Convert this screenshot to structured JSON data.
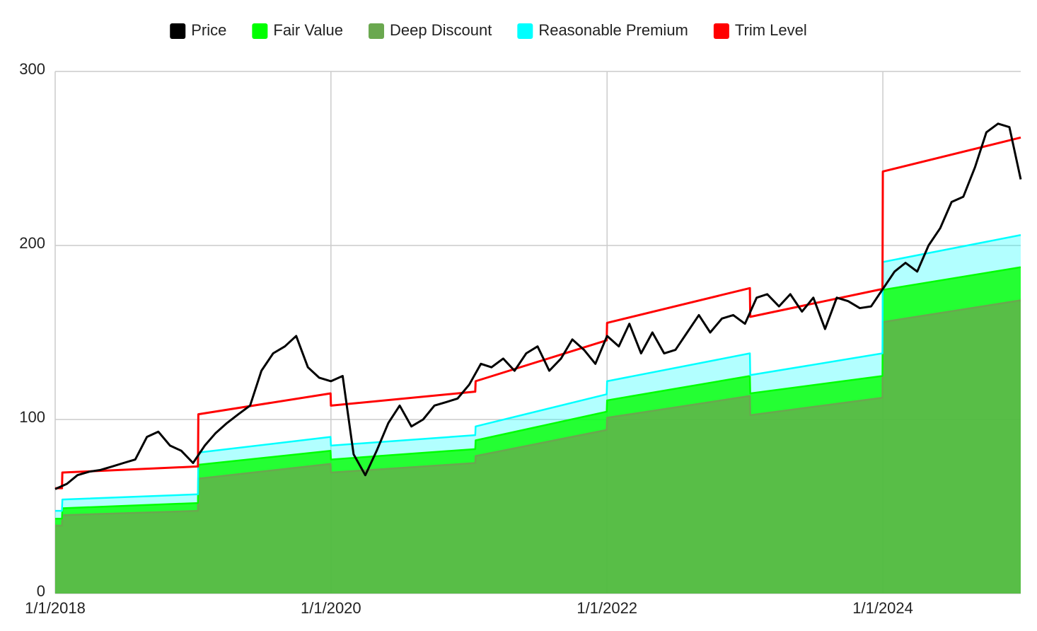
{
  "chart_data": {
    "type": "line",
    "xlim": [
      "2018-01-01",
      "2024-12-31"
    ],
    "xticks": [
      {
        "value": "2018-01-01",
        "label": "1/1/2018"
      },
      {
        "value": "2020-01-01",
        "label": "1/1/2020"
      },
      {
        "value": "2022-01-01",
        "label": "1/1/2022"
      },
      {
        "value": "2024-01-01",
        "label": "1/1/2024"
      }
    ],
    "ylim": [
      0,
      300
    ],
    "yticks": [
      0,
      100,
      200,
      300
    ],
    "grid": true,
    "legend": "top",
    "series": [
      {
        "name": "Price",
        "color": "#000000",
        "area": false,
        "x": [
          "2018-01-01",
          "2018-02-01",
          "2018-03-01",
          "2018-04-01",
          "2018-05-01",
          "2018-06-01",
          "2018-07-01",
          "2018-08-01",
          "2018-09-01",
          "2018-10-01",
          "2018-11-01",
          "2018-12-01",
          "2019-01-01",
          "2019-02-01",
          "2019-03-01",
          "2019-04-01",
          "2019-05-01",
          "2019-06-01",
          "2019-07-01",
          "2019-08-01",
          "2019-09-01",
          "2019-10-01",
          "2019-11-01",
          "2019-12-01",
          "2020-01-01",
          "2020-02-01",
          "2020-03-01",
          "2020-04-01",
          "2020-05-01",
          "2020-06-01",
          "2020-07-01",
          "2020-08-01",
          "2020-09-01",
          "2020-10-01",
          "2020-11-01",
          "2020-12-01",
          "2021-01-01",
          "2021-02-01",
          "2021-03-01",
          "2021-04-01",
          "2021-05-01",
          "2021-06-01",
          "2021-07-01",
          "2021-08-01",
          "2021-09-01",
          "2021-10-01",
          "2021-11-01",
          "2021-12-01",
          "2022-01-01",
          "2022-02-01",
          "2022-03-01",
          "2022-04-01",
          "2022-05-01",
          "2022-06-01",
          "2022-07-01",
          "2022-08-01",
          "2022-09-01",
          "2022-10-01",
          "2022-11-01",
          "2022-12-01",
          "2023-01-01",
          "2023-02-01",
          "2023-03-01",
          "2023-04-01",
          "2023-05-01",
          "2023-06-01",
          "2023-07-01",
          "2023-08-01",
          "2023-09-01",
          "2023-10-01",
          "2023-11-01",
          "2023-12-01",
          "2024-01-01",
          "2024-02-01",
          "2024-03-01",
          "2024-04-01",
          "2024-05-01",
          "2024-06-01",
          "2024-07-01",
          "2024-08-01",
          "2024-09-01",
          "2024-10-01",
          "2024-11-01",
          "2024-12-01",
          "2024-12-31"
        ],
        "values": [
          60,
          63,
          68,
          70,
          71,
          73,
          75,
          77,
          90,
          93,
          85,
          82,
          75,
          85,
          92,
          98,
          103,
          108,
          128,
          138,
          142,
          148,
          130,
          124,
          122,
          125,
          80,
          68,
          82,
          98,
          108,
          96,
          100,
          108,
          110,
          112,
          120,
          132,
          130,
          135,
          128,
          138,
          142,
          128,
          135,
          146,
          140,
          132,
          148,
          142,
          155,
          138,
          150,
          138,
          140,
          150,
          160,
          150,
          158,
          160,
          155,
          170,
          172,
          165,
          172,
          162,
          170,
          152,
          170,
          168,
          164,
          165,
          175,
          185,
          190,
          185,
          200,
          210,
          225,
          228,
          245,
          265,
          270,
          268,
          238
        ]
      },
      {
        "name": "Fair Value",
        "color": "#00ff00",
        "area": true,
        "x": [
          "2018-01-01",
          "2018-01-19",
          "2018-01-20",
          "2019-01-14",
          "2019-01-15",
          "2019-12-31",
          "2020-01-01",
          "2021-01-17",
          "2021-01-18",
          "2021-12-31",
          "2022-01-01",
          "2023-01-14",
          "2023-01-15",
          "2023-12-31",
          "2024-01-01",
          "2024-12-31"
        ],
        "values": [
          43,
          43,
          49,
          52,
          74,
          82,
          77,
          83,
          88,
          104.5,
          111,
          125,
          115,
          125,
          174.5,
          187.5
        ]
      },
      {
        "name": "Deep Discount",
        "color": "#6aa84f",
        "area": true,
        "x": [
          "2018-01-01",
          "2018-01-19",
          "2018-01-20",
          "2019-01-14",
          "2019-01-15",
          "2019-12-31",
          "2020-01-01",
          "2021-01-17",
          "2021-01-18",
          "2021-12-31",
          "2022-01-01",
          "2023-01-14",
          "2023-01-15",
          "2023-12-31",
          "2024-01-01",
          "2024-12-31"
        ],
        "values": [
          39,
          39,
          45,
          47.5,
          66,
          74.5,
          69.5,
          75,
          79,
          94,
          101,
          113.5,
          102.5,
          112.5,
          156,
          168.5
        ]
      },
      {
        "name": "Reasonable Premium",
        "color": "#00ffff",
        "area": true,
        "x": [
          "2018-01-01",
          "2018-01-19",
          "2018-01-20",
          "2019-01-14",
          "2019-01-15",
          "2019-12-31",
          "2020-01-01",
          "2021-01-17",
          "2021-01-18",
          "2021-12-31",
          "2022-01-01",
          "2023-01-14",
          "2023-01-15",
          "2023-12-31",
          "2024-01-01",
          "2024-12-31"
        ],
        "values": [
          47.5,
          47.5,
          54,
          57,
          81,
          90,
          85,
          91,
          96,
          114.5,
          122,
          138,
          125.5,
          138,
          190.5,
          206
        ]
      },
      {
        "name": "Trim Level",
        "color": "#ff0000",
        "area": false,
        "x": [
          "2018-01-01",
          "2018-01-19",
          "2018-01-20",
          "2019-01-14",
          "2019-01-15",
          "2019-12-31",
          "2020-01-01",
          "2021-01-17",
          "2021-01-18",
          "2021-12-31",
          "2022-01-01",
          "2023-01-14",
          "2023-01-15",
          "2023-12-31",
          "2024-01-01",
          "2024-12-31"
        ],
        "values": [
          60.5,
          60.5,
          69.5,
          73,
          103,
          115,
          108,
          116,
          122,
          145.5,
          155.5,
          175.5,
          159,
          175,
          242.5,
          262
        ]
      }
    ]
  }
}
